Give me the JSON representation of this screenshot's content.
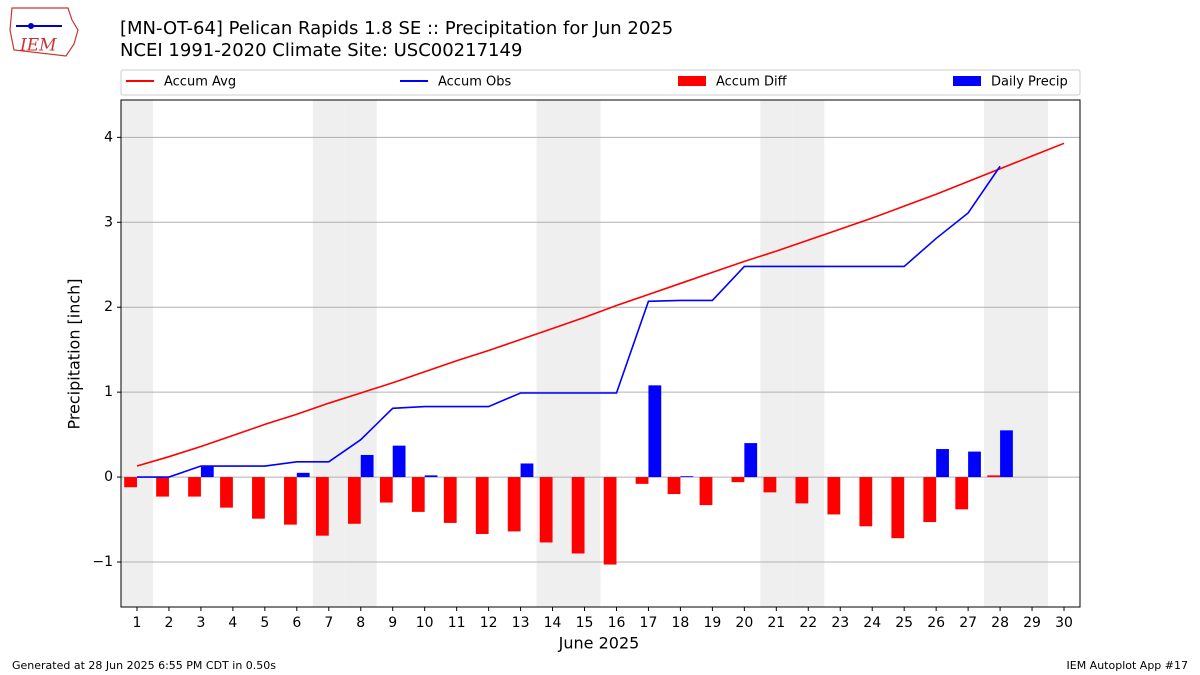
{
  "logo_text": "IEM",
  "footer": {
    "left": "Generated at 28 Jun 2025 6:55 PM CDT in 0.50s",
    "right": "IEM Autoplot App #17"
  },
  "chart_data": {
    "type": "bar_line",
    "title": "[MN-OT-64] Pelican Rapids 1.8 SE :: Precipitation for Jun 2025",
    "subtitle": "NCEI 1991-2020 Climate Site: USC00217149",
    "xlabel": "June 2025",
    "ylabel": "Precipitation [inch]",
    "x": [
      1,
      2,
      3,
      4,
      5,
      6,
      7,
      8,
      9,
      10,
      11,
      12,
      13,
      14,
      15,
      16,
      17,
      18,
      19,
      20,
      21,
      22,
      23,
      24,
      25,
      26,
      27,
      28,
      29,
      30
    ],
    "shaded_days": [
      1,
      7,
      8,
      14,
      15,
      21,
      22,
      28,
      29
    ],
    "xlim": [
      0.5,
      30.5
    ],
    "xticks": [
      1,
      2,
      3,
      4,
      5,
      6,
      7,
      8,
      9,
      10,
      11,
      12,
      13,
      14,
      15,
      16,
      17,
      18,
      19,
      20,
      21,
      22,
      23,
      24,
      25,
      26,
      27,
      28,
      29,
      30
    ],
    "ylim": [
      -1.53,
      4.44
    ],
    "yticks": [
      {
        "value": -1,
        "label": "−1"
      },
      0,
      1,
      2,
      3,
      4
    ],
    "grid": true,
    "series": [
      {
        "name": "Accum Avg",
        "kind": "line",
        "color": "#ff0000",
        "values": [
          0.13,
          0.24,
          0.36,
          0.49,
          0.62,
          0.74,
          0.87,
          0.99,
          1.11,
          1.24,
          1.37,
          1.49,
          1.62,
          1.75,
          1.88,
          2.02,
          2.15,
          2.28,
          2.41,
          2.54,
          2.66,
          2.79,
          2.92,
          3.05,
          3.19,
          3.33,
          3.48,
          3.63,
          3.78,
          3.93
        ]
      },
      {
        "name": "Accum Obs",
        "kind": "line",
        "color": "#0000ff",
        "values": [
          0,
          0,
          0.13,
          0.13,
          0.13,
          0.18,
          0.18,
          0.44,
          0.81,
          0.83,
          0.83,
          0.83,
          0.99,
          0.99,
          0.99,
          0.99,
          2.07,
          2.08,
          2.08,
          2.48,
          2.48,
          2.48,
          2.48,
          2.48,
          2.48,
          2.81,
          3.11,
          3.66,
          null,
          null
        ]
      },
      {
        "name": "Accum Diff",
        "kind": "bar",
        "offset": -0.2,
        "color": "#ff0000",
        "values": [
          -0.12,
          -0.23,
          -0.23,
          -0.36,
          -0.49,
          -0.56,
          -0.69,
          -0.55,
          -0.3,
          -0.41,
          -0.54,
          -0.67,
          -0.64,
          -0.77,
          -0.9,
          -1.03,
          -0.08,
          -0.2,
          -0.33,
          -0.06,
          -0.18,
          -0.31,
          -0.44,
          -0.58,
          -0.72,
          -0.53,
          -0.38,
          0.02,
          null,
          null
        ]
      },
      {
        "name": "Daily Precip",
        "kind": "bar",
        "offset": 0.2,
        "color": "#0000ff",
        "values": [
          0,
          0,
          0.13,
          0,
          0,
          0.05,
          0,
          0.26,
          0.37,
          0.02,
          0,
          0,
          0.16,
          0,
          0,
          0,
          1.08,
          0.01,
          0,
          0.4,
          0,
          0,
          0,
          0,
          0,
          0.33,
          0.3,
          0.55,
          null,
          null
        ]
      }
    ]
  }
}
